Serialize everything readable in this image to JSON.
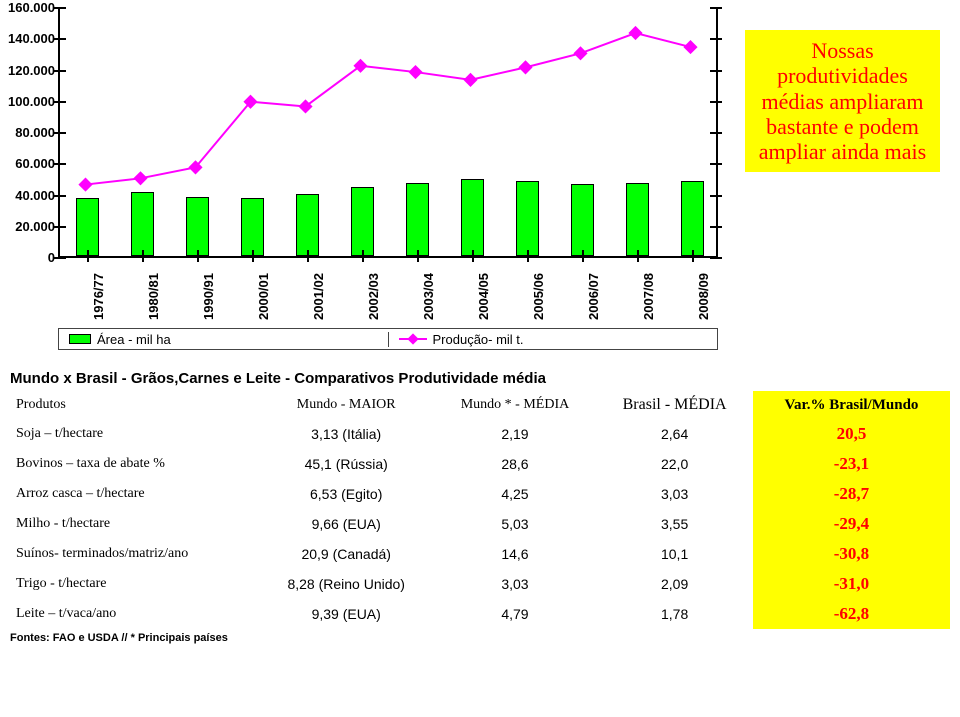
{
  "chart": {
    "ylim": [
      0,
      160000
    ],
    "ytick_step": 20000,
    "yticks": [
      "0",
      "20.000",
      "40.000",
      "60.000",
      "80.000",
      "100.000",
      "120.000",
      "140.000",
      "160.000"
    ],
    "categories": [
      "1976/77",
      "1980/81",
      "1990/91",
      "2000/01",
      "2001/02",
      "2002/03",
      "2003/04",
      "2004/05",
      "2005/06",
      "2006/07",
      "2007/08",
      "2008/09"
    ],
    "bars": [
      37000,
      41000,
      38000,
      37000,
      40000,
      44000,
      47000,
      49000,
      48000,
      46000,
      47000,
      48000
    ],
    "line": [
      47000,
      51000,
      58000,
      100000,
      97000,
      123000,
      119000,
      114000,
      122000,
      131000,
      144000,
      135000
    ],
    "bar_color": "#00ff00",
    "bar_border": "#000000",
    "line_color": "#ff00ff",
    "marker_shape": "diamond",
    "legend_area": "Área - mil ha",
    "legend_prod": "Produção- mil t."
  },
  "annotation": {
    "text": "Nossas produtividades médias ampliaram bastante e podem ampliar ainda mais",
    "bg": "#ffff00",
    "fg": "#ff0000"
  },
  "table": {
    "title": "Mundo x Brasil - Grãos,Carnes e Leite - Comparativos  Produtividade média",
    "headers": {
      "produtos": "Produtos",
      "mundo_maior": "Mundo - MAIOR",
      "mundo_media": "Mundo * - MÉDIA",
      "brasil_media": "Brasil - MÉDIA",
      "var": "Var.% Brasil/Mundo"
    },
    "rows": [
      {
        "produto": "Soja – t/hectare",
        "maior": "3,13 (Itália)",
        "media": "2,19",
        "brasil": "2,64",
        "var": "20,5"
      },
      {
        "produto": "Bovinos – taxa de abate %",
        "maior": "45,1 (Rússia)",
        "media": "28,6",
        "brasil": "22,0",
        "var": "-23,1"
      },
      {
        "produto": "Arroz casca – t/hectare",
        "maior": "6,53 (Egito)",
        "media": "4,25",
        "brasil": "3,03",
        "var": "-28,7"
      },
      {
        "produto": "Milho - t/hectare",
        "maior": "9,66 (EUA)",
        "media": "5,03",
        "brasil": "3,55",
        "var": "-29,4"
      },
      {
        "produto": "Suínos- terminados/matriz/ano",
        "maior": "20,9 (Canadá)",
        "media": "14,6",
        "brasil": "10,1",
        "var": "-30,8"
      },
      {
        "produto": "Trigo - t/hectare",
        "maior": "8,28 (Reino Unido)",
        "media": "3,03",
        "brasil": "2,09",
        "var": "-31,0"
      },
      {
        "produto": "Leite – t/vaca/ano",
        "maior": "9,39 (EUA)",
        "media": "4,79",
        "brasil": "1,78",
        "var": "-62,8"
      }
    ],
    "var_bg": "#ffff00",
    "var_fg": "#ff0000",
    "source": "Fontes: FAO e USDA  // * Principais países"
  }
}
